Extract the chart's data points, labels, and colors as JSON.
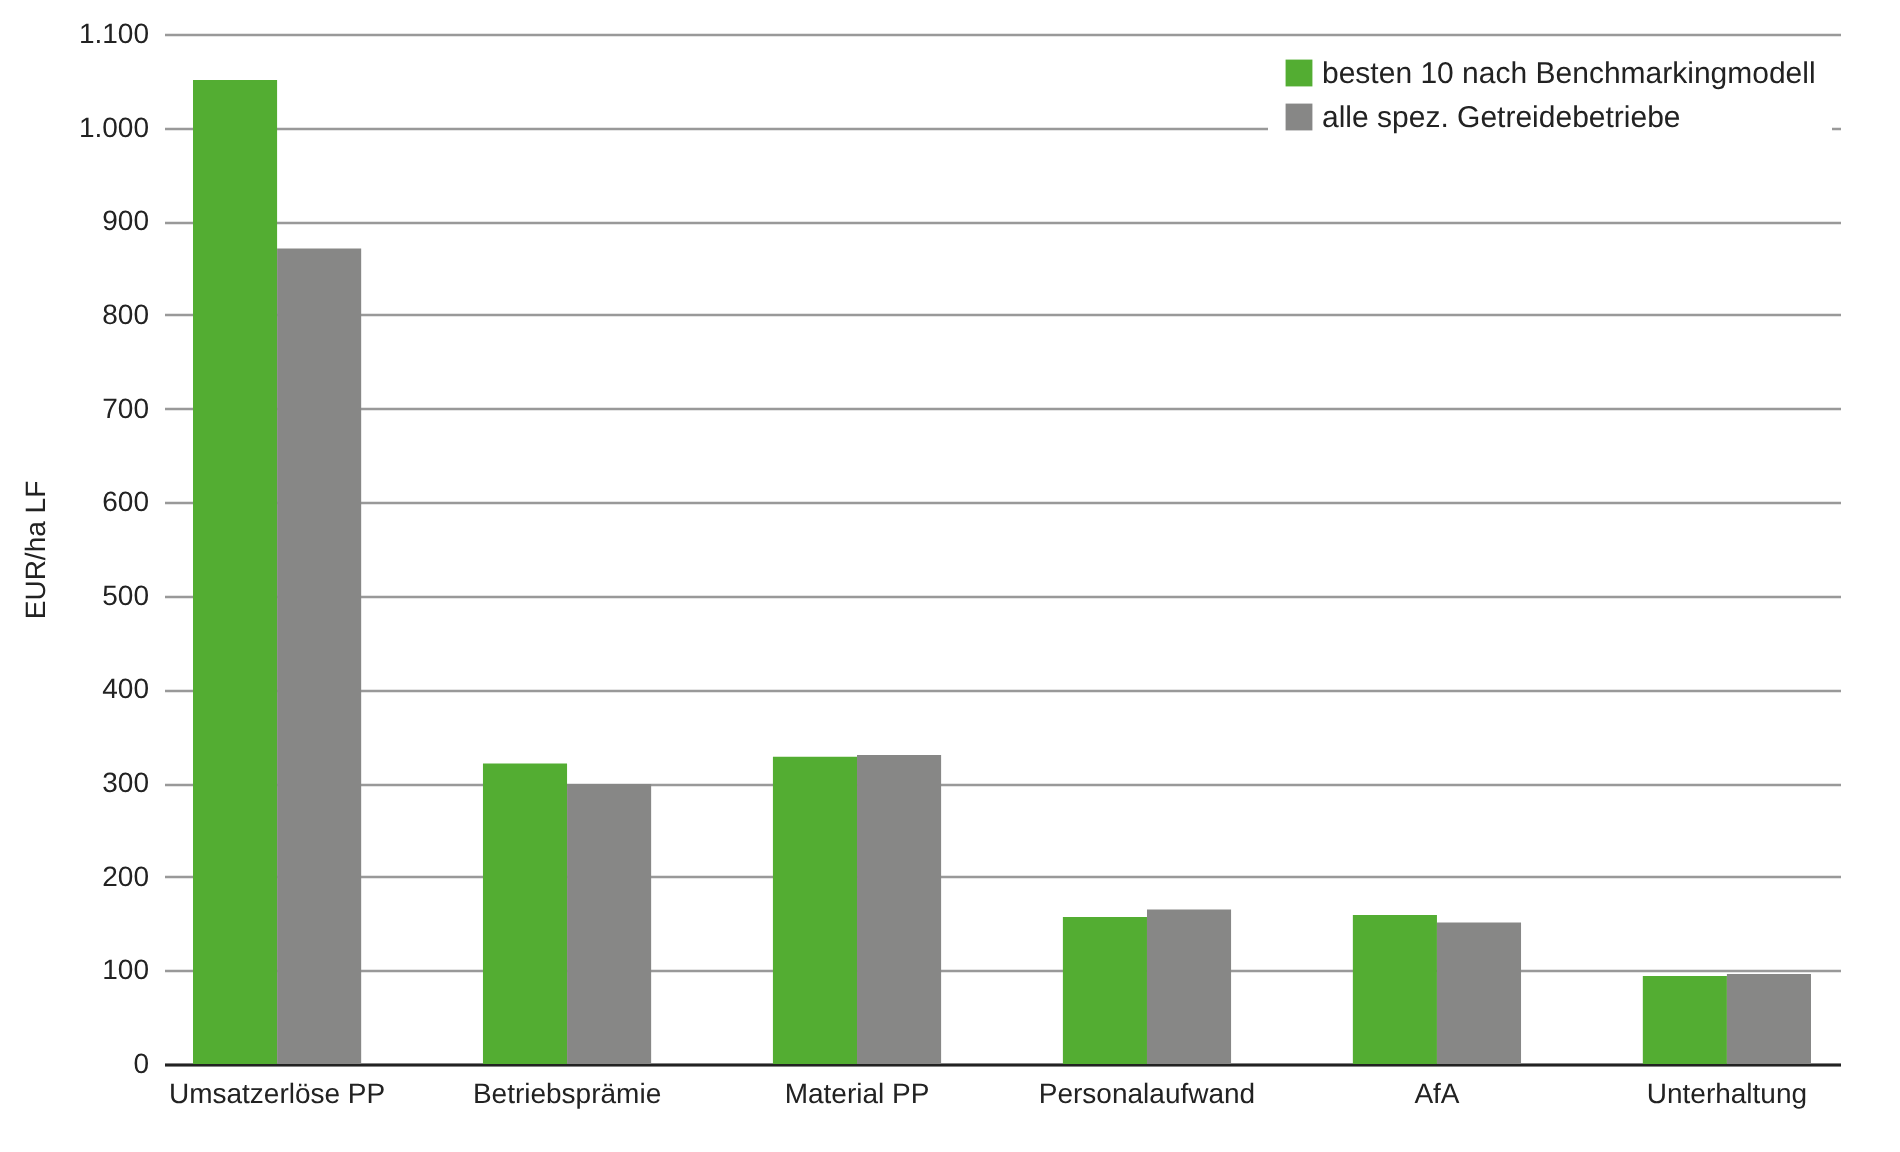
{
  "chart_data": {
    "type": "bar",
    "ylabel": "EUR/ha LF",
    "categories": [
      "Umsatzerlöse PP",
      "Betriebsprämie",
      "Material PP",
      "Personalaufwand",
      "AfA",
      "Unterhaltung"
    ],
    "series": [
      {
        "name": "besten 10 nach Benchmarkingmodell",
        "color": "#53ad32",
        "values": [
          1051,
          321,
          328,
          157,
          159,
          94
        ]
      },
      {
        "name": "alle spez. Getreidebetriebe",
        "color": "#878786",
        "values": [
          871,
          299,
          330,
          165,
          151,
          96
        ]
      }
    ],
    "ylim": [
      0,
      1100
    ],
    "yticks": [
      0,
      100,
      200,
      300,
      400,
      500,
      600,
      700,
      800,
      900,
      {
        "value": 1000,
        "label": "1.000"
      },
      {
        "value": 1100,
        "label": "1.100"
      }
    ],
    "grid": "y",
    "legend": "top right"
  }
}
